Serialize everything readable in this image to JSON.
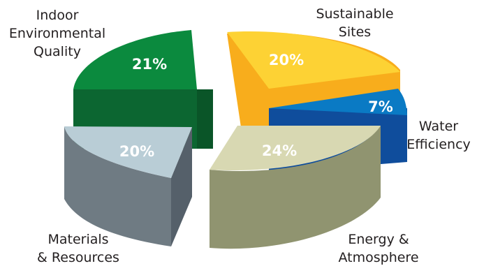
{
  "chart_data": {
    "type": "pie",
    "style": "exploded 3D pie",
    "categories": [
      "Sustainable Sites",
      "Water Efficiency",
      "Energy & Atmosphere",
      "Materials & Resources",
      "Indoor Environmental Quality"
    ],
    "values": [
      20,
      7,
      24,
      20,
      21
    ],
    "value_labels": [
      "20%",
      "7%",
      "24%",
      "20%",
      "21%"
    ],
    "category_lines": [
      [
        "Sustainable",
        "Sites"
      ],
      [
        "Water",
        "Efficiency"
      ],
      [
        "Energy &",
        "Atmosphere"
      ],
      [
        "Materials",
        "& Resources"
      ],
      [
        "Indoor",
        "Environmental",
        "Quality"
      ]
    ],
    "colors": {
      "top": [
        "#fdd234",
        "#0a7ac4",
        "#d8d8b2",
        "#b9cdd6",
        "#0b8a3e"
      ],
      "side": [
        "#f8ad1c",
        "#0f4d9c",
        "#909470",
        "#6f7b83",
        "#0c6631"
      ]
    }
  }
}
